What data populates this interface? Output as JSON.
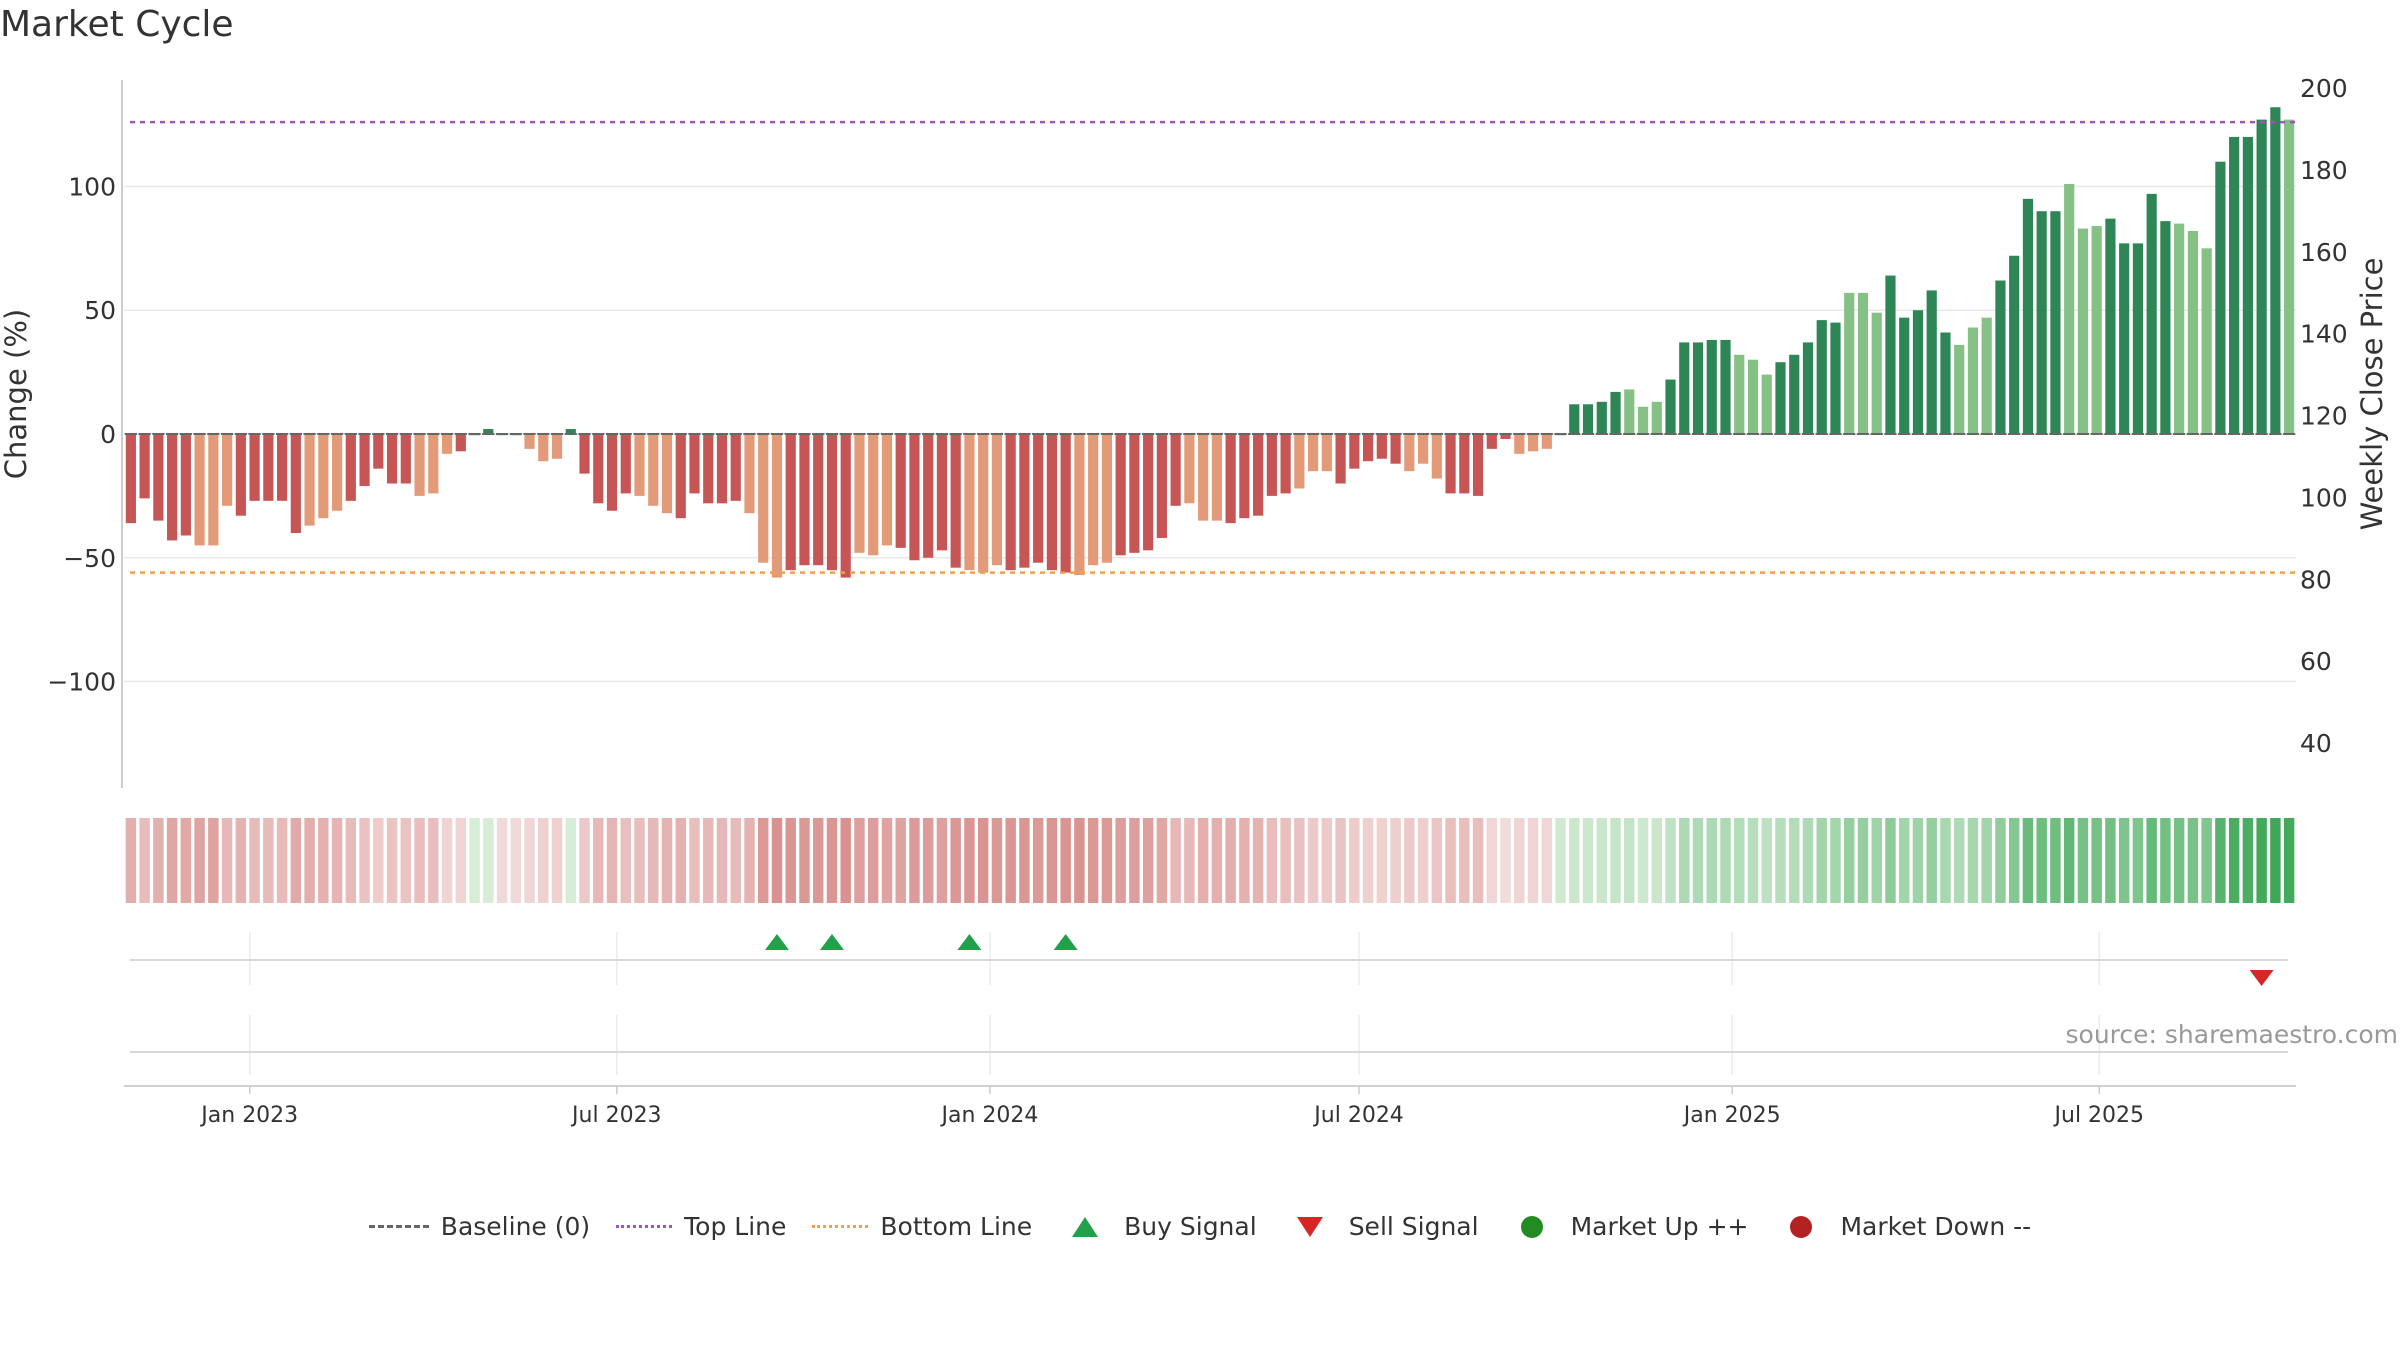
{
  "chart_data": {
    "type": "bar",
    "title": "Market Cycle",
    "ylabel": "Change (%)",
    "y2label": "Weekly Close Price",
    "ylim": [
      -143,
      143
    ],
    "y2lim": [
      29,
      202
    ],
    "yticks": [
      -100,
      -50,
      0,
      50,
      100
    ],
    "y2ticks": [
      40,
      60,
      80,
      100,
      120,
      140,
      160,
      180,
      200
    ],
    "top_line": 126,
    "bottom_line": -56,
    "x_start": "2022-10-31",
    "x_end": "2025-10-06",
    "xticks": [
      {
        "label": "Jan 2023",
        "date": "2023-01-01"
      },
      {
        "label": "Jul 2023",
        "date": "2023-07-01"
      },
      {
        "label": "Jan 2024",
        "date": "2024-01-01"
      },
      {
        "label": "Jul 2024",
        "date": "2024-07-01"
      },
      {
        "label": "Jan 2025",
        "date": "2025-01-01"
      },
      {
        "label": "Jul 2025",
        "date": "2025-07-01"
      }
    ],
    "values": [
      -36,
      -26,
      -35,
      -43,
      -41,
      -45,
      -45,
      -29,
      -33,
      -27,
      -27,
      -27,
      -40,
      -37,
      -34,
      -31,
      -27,
      -21,
      -14,
      -20,
      -20,
      -25,
      -24,
      -8,
      -7,
      0,
      2,
      0,
      0,
      -6,
      -11,
      -10,
      2,
      -16,
      -28,
      -31,
      -24,
      -25,
      -29,
      -32,
      -34,
      -24,
      -28,
      -28,
      -27,
      -32,
      -52,
      -58,
      -55,
      -53,
      -53,
      -55,
      -58,
      -48,
      -49,
      -45,
      -46,
      -51,
      -50,
      -47,
      -54,
      -55,
      -56,
      -53,
      -55,
      -54,
      -52,
      -55,
      -56,
      -57,
      -53,
      -52,
      -49,
      -48,
      -47,
      -42,
      -29,
      -28,
      -35,
      -35,
      -36,
      -34,
      -33,
      -25,
      -24,
      -22,
      -15,
      -15,
      -20,
      -14,
      -11,
      -10,
      -12,
      -15,
      -12,
      -18,
      -24,
      -24,
      -25,
      -6,
      -2,
      -8,
      -7,
      -6,
      0,
      12,
      12,
      13,
      17,
      18,
      11,
      13,
      22,
      37,
      37,
      38,
      38,
      32,
      30,
      24,
      29,
      32,
      37,
      46,
      45,
      57,
      57,
      49,
      64,
      47,
      50,
      58,
      41,
      36,
      43,
      47,
      62,
      72,
      95,
      90,
      90,
      101,
      83,
      84,
      87,
      77,
      77,
      97,
      86,
      85,
      82,
      75,
      110,
      120,
      120,
      127,
      132,
      127
    ],
    "band_values": [
      -36,
      -26,
      -35,
      -43,
      -41,
      -45,
      -45,
      -29,
      -33,
      -27,
      -27,
      -27,
      -40,
      -37,
      -34,
      -31,
      -27,
      -21,
      -14,
      -20,
      -20,
      -25,
      -24,
      -8,
      -7,
      2,
      2,
      -4,
      -4,
      -6,
      -11,
      -10,
      2,
      -16,
      -28,
      -31,
      -24,
      -25,
      -29,
      -32,
      -34,
      -24,
      -28,
      -28,
      -27,
      -32,
      -52,
      -58,
      -55,
      -53,
      -53,
      -55,
      -58,
      -48,
      -49,
      -45,
      -46,
      -51,
      -50,
      -47,
      -54,
      -55,
      -56,
      -53,
      -55,
      -54,
      -52,
      -55,
      -56,
      -57,
      -53,
      -52,
      -49,
      -48,
      -47,
      -42,
      -29,
      -28,
      -35,
      -35,
      -36,
      -34,
      -33,
      -25,
      -24,
      -22,
      -15,
      -15,
      -20,
      -14,
      -11,
      -10,
      -12,
      -15,
      -12,
      -18,
      -24,
      -24,
      -25,
      -6,
      -2,
      -8,
      -7,
      -6,
      8,
      12,
      12,
      13,
      17,
      18,
      11,
      13,
      22,
      37,
      37,
      38,
      38,
      32,
      30,
      24,
      29,
      32,
      37,
      46,
      45,
      57,
      57,
      49,
      64,
      47,
      50,
      58,
      41,
      36,
      43,
      47,
      62,
      72,
      95,
      90,
      90,
      101,
      83,
      84,
      87,
      77,
      77,
      97,
      86,
      85,
      82,
      75,
      110,
      120,
      120,
      127,
      132,
      127
    ],
    "buy_signals": [
      47,
      51,
      61,
      68
    ],
    "sell_signals": [
      155
    ],
    "legend": [
      "Baseline (0)",
      "Top Line",
      "Bottom Line",
      "Buy Signal",
      "Sell Signal",
      "Market Up ++",
      "Market Down --"
    ],
    "source": "source: sharemaestro.com",
    "colors": {
      "down_dark": "#c65656",
      "down_light": "#e39a78",
      "up_dark": "#2e8555",
      "up_light": "#85c085",
      "top_line": "#9b59b6",
      "bottom_line": "#f0a050",
      "buy": "#23a04a",
      "sell": "#d62728",
      "market_up": "#228b22",
      "market_down": "#b22222",
      "baseline": "#666666"
    }
  }
}
